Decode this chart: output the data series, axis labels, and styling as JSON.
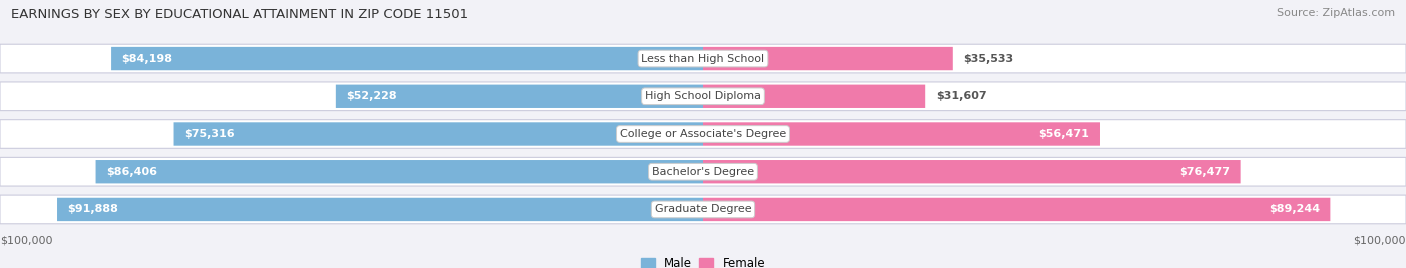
{
  "title": "EARNINGS BY SEX BY EDUCATIONAL ATTAINMENT IN ZIP CODE 11501",
  "source": "Source: ZipAtlas.com",
  "categories": [
    "Less than High School",
    "High School Diploma",
    "College or Associate's Degree",
    "Bachelor's Degree",
    "Graduate Degree"
  ],
  "male_values": [
    84198,
    52228,
    75316,
    86406,
    91888
  ],
  "female_values": [
    35533,
    31607,
    56471,
    76477,
    89244
  ],
  "max_value": 100000,
  "male_color": "#7ab3d9",
  "female_color": "#f07aaa",
  "bg_color": "#f2f2f7",
  "row_bg_color": "#e8e8f0",
  "xlabel_left": "$100,000",
  "xlabel_right": "$100,000"
}
